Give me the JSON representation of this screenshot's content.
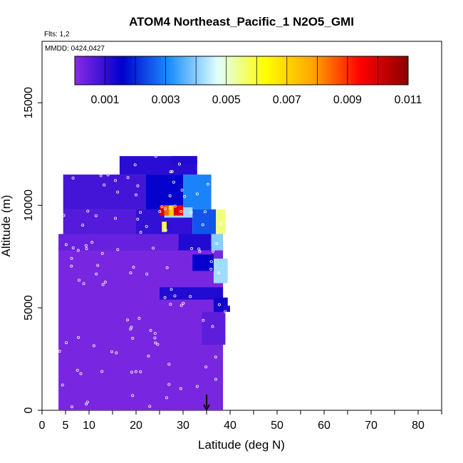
{
  "chart_data": {
    "type": "heatmap",
    "title": "ATOM4 Northeast_Pacific_1 N2O5_GMI",
    "flights_label": "Flts: 1,2",
    "date_label": "MMDD: 0424,0427",
    "xlabel": "Latitude (deg N)",
    "ylabel": "Altitude (m)",
    "xlim": [
      0,
      85
    ],
    "ylim": [
      0,
      18000
    ],
    "x_ticks": [
      0,
      5,
      10,
      20,
      30,
      40,
      50,
      60,
      70,
      80
    ],
    "y_ticks": [
      0,
      5000,
      10000,
      15000
    ],
    "colorbar": {
      "range": [
        0,
        0.011
      ],
      "tick_values": [
        0.001,
        0.003,
        0.005,
        0.007,
        0.009,
        0.011
      ],
      "tick_labels": [
        "0.001",
        "0.003",
        "0.005",
        "0.007",
        "0.009",
        "0.011"
      ],
      "colors": [
        "#8a2be2",
        "#0000cd",
        "#1e90ff",
        "#e0ffff",
        "#ffff00",
        "#ffa500",
        "#ff0000",
        "#8b0000"
      ]
    },
    "marker_latitude": 35,
    "cells": [
      {
        "lat": [
          3.5,
          38.5
        ],
        "alt": [
          0,
          8000
        ],
        "value": 0.0002
      },
      {
        "lat": [
          3.5,
          29.0
        ],
        "alt": [
          7800,
          8600
        ],
        "value": 0.0004
      },
      {
        "lat": [
          29.0,
          36.0
        ],
        "alt": [
          7800,
          8600
        ],
        "value": 0.0012
      },
      {
        "lat": [
          36.0,
          38.5
        ],
        "alt": [
          7800,
          8600
        ],
        "value": 0.004
      },
      {
        "lat": [
          4.5,
          20.0
        ],
        "alt": [
          8600,
          9800
        ],
        "value": 0.0006
      },
      {
        "lat": [
          20.0,
          32.0
        ],
        "alt": [
          8600,
          9800
        ],
        "value": 0.001
      },
      {
        "lat": [
          32.0,
          37.0
        ],
        "alt": [
          8600,
          9800
        ],
        "value": 0.0025
      },
      {
        "lat": [
          37.0,
          39.0
        ],
        "alt": [
          8600,
          9800
        ],
        "value": 0.0055
      },
      {
        "lat": [
          4.5,
          22.0
        ],
        "alt": [
          9800,
          11500
        ],
        "value": 0.0008
      },
      {
        "lat": [
          22.0,
          30.0
        ],
        "alt": [
          9800,
          11500
        ],
        "value": 0.0015
      },
      {
        "lat": [
          30.0,
          36.0
        ],
        "alt": [
          9800,
          11500
        ],
        "value": 0.003
      },
      {
        "lat": [
          16.5,
          33.0
        ],
        "alt": [
          11500,
          12400
        ],
        "value": 0.0011
      },
      {
        "lat": [
          27.5,
          33.0
        ],
        "alt": [
          12000,
          12400
        ],
        "value": 0.0012
      },
      {
        "lat": [
          26.0,
          32.0
        ],
        "alt": [
          9400,
          9900
        ],
        "value": 0.0042
      },
      {
        "lat": [
          25.0,
          26.0
        ],
        "alt": [
          9500,
          10000
        ],
        "value": 0.01
      },
      {
        "lat": [
          26.0,
          27.0
        ],
        "alt": [
          9500,
          10000
        ],
        "value": 0.0085
      },
      {
        "lat": [
          27.0,
          28.0
        ],
        "alt": [
          9500,
          10000
        ],
        "value": 0.007
      },
      {
        "lat": [
          28.0,
          29.0
        ],
        "alt": [
          9500,
          10000
        ],
        "value": 0.01
      },
      {
        "lat": [
          29.0,
          30.0
        ],
        "alt": [
          9500,
          10000
        ],
        "value": 0.0095
      },
      {
        "lat": [
          25.5,
          26.5
        ],
        "alt": [
          8700,
          9200
        ],
        "value": 0.0058
      },
      {
        "lat": [
          36.5,
          39.5
        ],
        "alt": [
          6200,
          7400
        ],
        "value": 0.0042
      },
      {
        "lat": [
          32.0,
          36.5
        ],
        "alt": [
          6800,
          7600
        ],
        "value": 0.0015
      },
      {
        "lat": [
          25.0,
          38.5
        ],
        "alt": [
          5400,
          6000
        ],
        "value": 0.0012
      },
      {
        "lat": [
          36.5,
          39.5
        ],
        "alt": [
          4800,
          5500
        ],
        "value": 0.0014
      },
      {
        "lat": [
          38.5,
          40.0
        ],
        "alt": [
          4800,
          5100
        ],
        "value": 0.0012
      },
      {
        "lat": [
          34.0,
          39.0
        ],
        "alt": [
          3200,
          4800
        ],
        "value": 0.0005
      }
    ]
  }
}
